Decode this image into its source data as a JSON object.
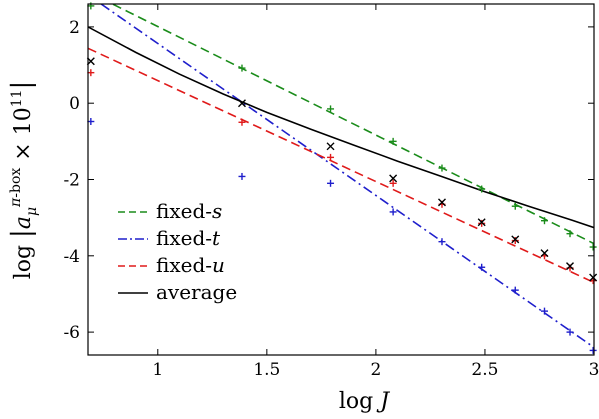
{
  "chart_data": {
    "type": "line",
    "xlabel": "log J",
    "ylabel": "log |a_μ^(π-box) × 10^11|",
    "xlim": [
      0.68,
      3.0
    ],
    "ylim": [
      -6.6,
      2.6
    ],
    "xticks": [
      1,
      1.5,
      2,
      2.5,
      3
    ],
    "xtick_labels": [
      "1",
      "1.5",
      "2",
      "2.5",
      "3"
    ],
    "yticks": [
      -6,
      -4,
      -2,
      0,
      2
    ],
    "ytick_labels": [
      "-6",
      "-4",
      "-2",
      "0",
      "2"
    ],
    "grid": false,
    "legend_position": "bottom-left",
    "series": [
      {
        "name": "fixed-s",
        "color": "#1a8c1a",
        "dash": "dashed",
        "marker": "+",
        "line": [
          [
            0.68,
            2.92
          ],
          [
            3.0,
            -3.68
          ]
        ],
        "points": [
          [
            0.693,
            2.55
          ],
          [
            1.386,
            0.92
          ],
          [
            1.792,
            -0.15
          ],
          [
            2.079,
            -1.0
          ],
          [
            2.303,
            -1.7
          ],
          [
            2.485,
            -2.25
          ],
          [
            2.639,
            -2.7
          ],
          [
            2.773,
            -3.08
          ],
          [
            2.89,
            -3.42
          ],
          [
            2.996,
            -3.77
          ]
        ]
      },
      {
        "name": "fixed-t",
        "color": "#1f1fcc",
        "dash": "dashdot",
        "marker": "+",
        "line": [
          [
            0.74,
            2.6
          ],
          [
            3.0,
            -6.4
          ]
        ],
        "points": [
          [
            0.693,
            -0.48
          ],
          [
            1.386,
            -1.92
          ],
          [
            1.792,
            -2.1
          ],
          [
            2.079,
            -2.85
          ],
          [
            2.303,
            -3.63
          ],
          [
            2.485,
            -4.3
          ],
          [
            2.639,
            -4.9
          ],
          [
            2.773,
            -5.45
          ],
          [
            2.89,
            -6.0
          ],
          [
            2.996,
            -6.48
          ]
        ]
      },
      {
        "name": "fixed-u",
        "color": "#e01a1a",
        "dash": "dashed",
        "marker": "+",
        "line": [
          [
            0.68,
            1.44
          ],
          [
            3.0,
            -4.7
          ]
        ],
        "points": [
          [
            0.693,
            0.8
          ],
          [
            1.386,
            -0.5
          ],
          [
            1.792,
            -1.42
          ],
          [
            2.079,
            -2.1
          ],
          [
            2.303,
            -2.65
          ],
          [
            2.485,
            -3.15
          ],
          [
            2.639,
            -3.6
          ],
          [
            2.773,
            -4.0
          ],
          [
            2.89,
            -4.32
          ],
          [
            2.996,
            -4.65
          ]
        ]
      },
      {
        "name": "average",
        "color": "#000000",
        "dash": "solid",
        "marker": "x",
        "line": [
          [
            0.68,
            2.0
          ],
          [
            0.9,
            1.33
          ],
          [
            1.1,
            0.76
          ],
          [
            1.3,
            0.24
          ],
          [
            1.5,
            -0.24
          ],
          [
            1.7,
            -0.68
          ],
          [
            1.9,
            -1.1
          ],
          [
            2.1,
            -1.52
          ],
          [
            2.3,
            -1.92
          ],
          [
            2.5,
            -2.32
          ],
          [
            2.7,
            -2.7
          ],
          [
            2.9,
            -3.07
          ],
          [
            3.0,
            -3.26
          ]
        ],
        "points": [
          [
            0.693,
            1.1
          ],
          [
            1.386,
            0.0
          ],
          [
            1.792,
            -1.13
          ],
          [
            2.079,
            -1.97
          ],
          [
            2.303,
            -2.6
          ],
          [
            2.485,
            -3.12
          ],
          [
            2.639,
            -3.57
          ],
          [
            2.773,
            -3.93
          ],
          [
            2.89,
            -4.27
          ],
          [
            2.996,
            -4.57
          ]
        ]
      }
    ]
  }
}
